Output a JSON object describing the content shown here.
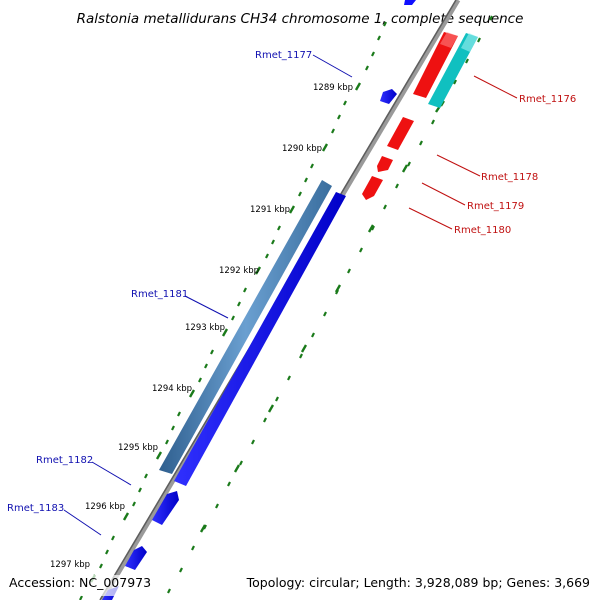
{
  "title": "Ralstonia metallidurans CH34 chromosome 1, complete sequence",
  "footer": {
    "accession": "Accession: NC_007973",
    "summary": "Topology: circular; Length: 3,928,089 bp; Genes: 3,669"
  },
  "scale_labels": [
    "1289 kbp",
    "1290 kbp",
    "1291 kbp",
    "1292 kbp",
    "1293 kbp",
    "1294 kbp",
    "1295 kbp",
    "1296 kbp",
    "1297 kbp"
  ],
  "genes": {
    "forward": [
      "Rmet_1176",
      "Rmet_1178",
      "Rmet_1179",
      "Rmet_1180"
    ],
    "reverse": [
      "Rmet_1177",
      "Rmet_1181",
      "Rmet_1182",
      "Rmet_1183"
    ]
  },
  "colors": {
    "forward_cds": "#ff0000",
    "reverse_cds": "#0000ff",
    "forward_gene": "#00cccc",
    "reverse_gene": "#4682b4",
    "backbone": "#808080",
    "ticks": "#1a7a1a",
    "label_blue": "#1010b0",
    "label_red": "#c01010"
  }
}
